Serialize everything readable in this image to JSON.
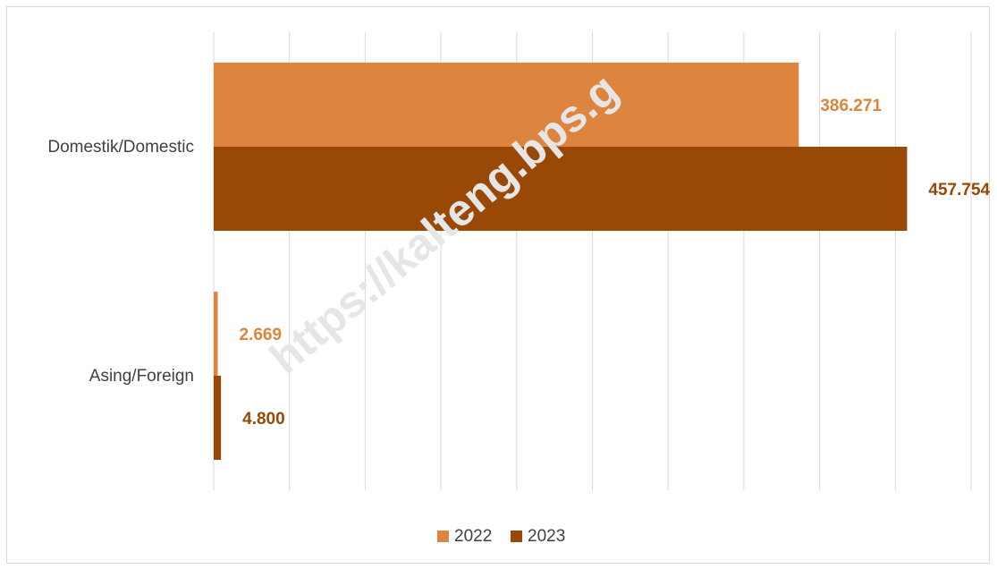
{
  "chart_data": {
    "type": "bar",
    "orientation": "horizontal",
    "categories": [
      "Domestik/Domestic",
      "Asing/Foreign"
    ],
    "series": [
      {
        "name": "2022",
        "color": "#DD843F",
        "values": [
          386271,
          2669
        ],
        "labels": [
          "386.271",
          "2.669"
        ]
      },
      {
        "name": "2023",
        "color": "#994805",
        "values": [
          457754,
          4800
        ],
        "labels": [
          "457.754",
          "4.800"
        ]
      }
    ],
    "xlim": [
      0,
      500000
    ],
    "grid": true,
    "legend": "bottom",
    "watermark": "https://kalteng.bps.g"
  }
}
